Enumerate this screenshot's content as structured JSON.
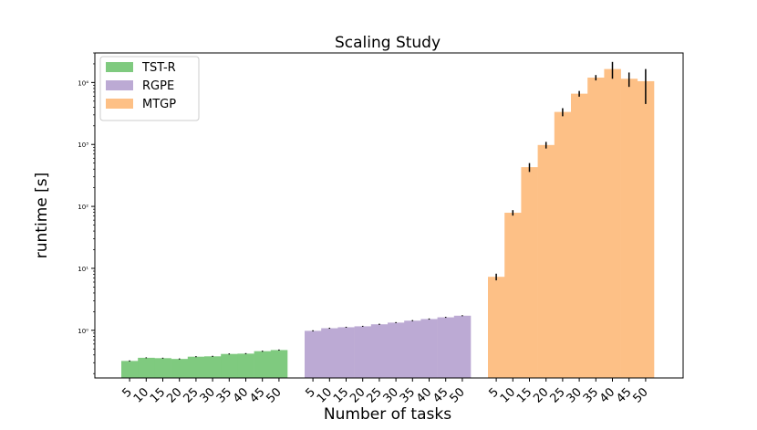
{
  "chart_data": {
    "type": "bar",
    "title": "Scaling Study",
    "xlabel": "Number of tasks",
    "ylabel": "runtime [s]",
    "yscale": "log",
    "ylim": [
      0.17,
      30000
    ],
    "yticks": [
      {
        "value": 1,
        "label": "10⁰"
      },
      {
        "value": 10,
        "label": "10¹"
      },
      {
        "value": 100,
        "label": "10²"
      },
      {
        "value": 1000,
        "label": "10³"
      },
      {
        "value": 10000,
        "label": "10⁴"
      }
    ],
    "legend_position": "upper-left",
    "grid": false,
    "categories": [
      "5",
      "10",
      "15",
      "20",
      "25",
      "30",
      "35",
      "40",
      "45",
      "50"
    ],
    "series": [
      {
        "name": "TST-R",
        "color": "#7fca7f",
        "values": [
          0.32,
          0.36,
          0.355,
          0.345,
          0.375,
          0.38,
          0.415,
          0.42,
          0.46,
          0.48
        ],
        "errors": [
          0.006,
          0.006,
          0.006,
          0.006,
          0.007,
          0.007,
          0.008,
          0.008,
          0.009,
          0.009
        ]
      },
      {
        "name": "RGPE",
        "color": "#bcaad4",
        "values": [
          0.98,
          1.08,
          1.12,
          1.16,
          1.25,
          1.33,
          1.43,
          1.52,
          1.62,
          1.72
        ],
        "errors": [
          0.02,
          0.02,
          0.02,
          0.02,
          0.025,
          0.025,
          0.03,
          0.03,
          0.03,
          0.03
        ]
      },
      {
        "name": "MTGP",
        "color": "#fdc086",
        "values": [
          7.3,
          79,
          430,
          980,
          3350,
          6600,
          12000,
          16500,
          11500,
          10500
        ],
        "errors": [
          0.9,
          8,
          70,
          120,
          500,
          700,
          1200,
          5000,
          3000,
          6000
        ]
      }
    ]
  }
}
